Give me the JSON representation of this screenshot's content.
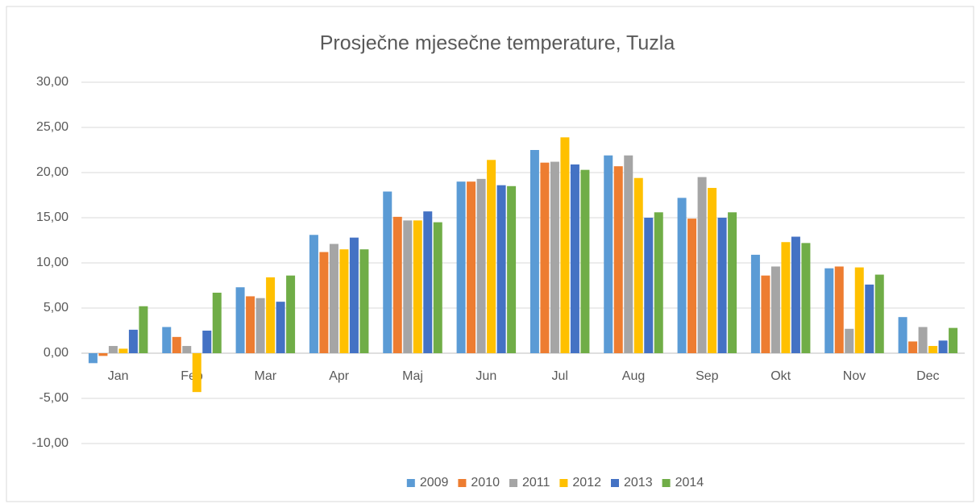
{
  "chart_data": {
    "type": "bar",
    "title": "Prosječne mjesečne temperature, Tuzla",
    "categories": [
      "Jan",
      "Feb",
      "Mar",
      "Apr",
      "Maj",
      "Jun",
      "Jul",
      "Aug",
      "Sep",
      "Okt",
      "Nov",
      "Dec"
    ],
    "series": [
      {
        "name": "2009",
        "color": "#5b9bd5",
        "values": [
          -1.1,
          2.9,
          7.3,
          13.1,
          17.9,
          19.0,
          22.5,
          21.9,
          17.2,
          10.9,
          9.4,
          4.0
        ]
      },
      {
        "name": "2010",
        "color": "#ed7d31",
        "values": [
          -0.3,
          1.8,
          6.3,
          11.2,
          15.1,
          19.0,
          21.1,
          20.7,
          14.9,
          8.6,
          9.6,
          1.3
        ]
      },
      {
        "name": "2011",
        "color": "#a5a5a5",
        "values": [
          0.8,
          0.8,
          6.1,
          12.1,
          14.7,
          19.3,
          21.2,
          21.9,
          19.5,
          9.6,
          2.7,
          2.9
        ]
      },
      {
        "name": "2012",
        "color": "#ffc000",
        "values": [
          0.5,
          -4.3,
          8.4,
          11.5,
          14.7,
          21.4,
          23.9,
          19.4,
          18.3,
          12.3,
          9.5,
          0.8
        ]
      },
      {
        "name": "2013",
        "color": "#4472c4",
        "values": [
          2.6,
          2.5,
          5.7,
          12.8,
          15.7,
          18.6,
          20.9,
          15.0,
          15.0,
          12.9,
          7.6,
          1.4
        ]
      },
      {
        "name": "2014",
        "color": "#70ad47",
        "values": [
          5.2,
          6.7,
          8.6,
          11.5,
          14.5,
          18.5,
          20.3,
          15.6,
          15.6,
          12.2,
          8.7,
          2.8
        ]
      }
    ],
    "ylim": [
      -10,
      30
    ],
    "yticks": [
      {
        "value": -10,
        "label": "-10,00"
      },
      {
        "value": -5,
        "label": "-5,00"
      },
      {
        "value": 0,
        "label": "0,00"
      },
      {
        "value": 5,
        "label": "5,00"
      },
      {
        "value": 10,
        "label": "10,00"
      },
      {
        "value": 15,
        "label": "15,00"
      },
      {
        "value": 20,
        "label": "20,00"
      },
      {
        "value": 25,
        "label": "25,00"
      },
      {
        "value": 30,
        "label": "30,00"
      }
    ],
    "grid": true,
    "legend": "bottom"
  }
}
